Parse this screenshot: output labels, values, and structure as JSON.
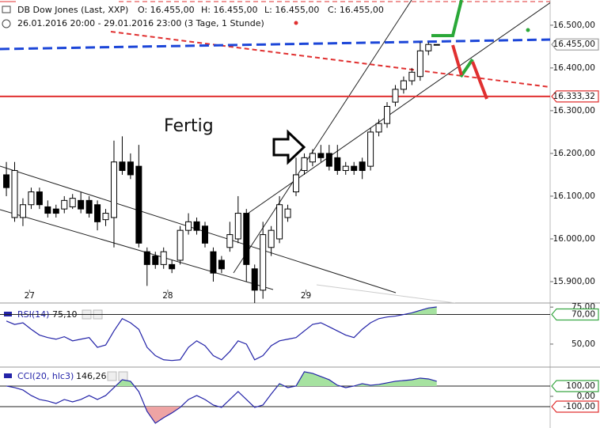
{
  "header": {
    "title": "DB Dow Jones (Last, XXP)",
    "open": "O: 16.455,00",
    "high": "H: 16.455,00",
    "low": "L: 16.455,00",
    "close": "C: 16.455,00",
    "range": "26.01.2016 20:00 - 29.01.2016 23:00 (3 Tage, 1 Stunde)"
  },
  "annotations": [
    "Fertig"
  ],
  "chart_data": [
    {
      "type": "candlestick",
      "categories": [
        null,
        null,
        null,
        null,
        null,
        null,
        null,
        null,
        null,
        null,
        null,
        null,
        null,
        null,
        null,
        null,
        null,
        null,
        null,
        null,
        null,
        null,
        null,
        null,
        null,
        null,
        null,
        null,
        null,
        null,
        null,
        null,
        null,
        null,
        null,
        null,
        null,
        null,
        null,
        null,
        null,
        null,
        null,
        null,
        null,
        null,
        null,
        null,
        null,
        null,
        null,
        null,
        null
      ],
      "open": [
        16150,
        16050,
        16050,
        16080,
        16110,
        16075,
        16070,
        16070,
        16075,
        16090,
        16090,
        16080,
        16045,
        16050,
        16180,
        16180,
        16170,
        15970,
        15960,
        15940,
        15940,
        15950,
        16020,
        16040,
        16030,
        15970,
        15950,
        15980,
        16000,
        16060,
        15930,
        15880,
        15980,
        16000,
        16050,
        16110,
        16160,
        16180,
        16200,
        16200,
        16190,
        16160,
        16170,
        16180,
        16170,
        16250,
        16270,
        16320,
        16350,
        16370,
        16380,
        16440,
        16455
      ],
      "high": [
        16180,
        16180,
        16095,
        16120,
        16120,
        16090,
        16080,
        16100,
        16105,
        16110,
        16100,
        16090,
        16070,
        16230,
        16240,
        16200,
        16220,
        15980,
        15970,
        15980,
        15950,
        16030,
        16060,
        16050,
        16040,
        15980,
        15960,
        16040,
        16100,
        16070,
        15940,
        16040,
        16030,
        16100,
        16080,
        16190,
        16200,
        16210,
        16220,
        16220,
        16220,
        16180,
        16180,
        16190,
        16260,
        16280,
        16320,
        16360,
        16380,
        16400,
        16460,
        16460,
        16455
      ],
      "low": [
        16100,
        16040,
        16030,
        16070,
        16070,
        16050,
        16050,
        16060,
        16070,
        16060,
        16050,
        16020,
        16030,
        15980,
        16150,
        16140,
        15980,
        15890,
        15930,
        15930,
        15920,
        15940,
        16010,
        16010,
        15980,
        15900,
        15920,
        15970,
        15990,
        15900,
        15850,
        15860,
        15960,
        15990,
        16040,
        16100,
        16150,
        16170,
        16180,
        16160,
        16150,
        16150,
        16150,
        16140,
        16160,
        16240,
        16260,
        16310,
        16340,
        16360,
        16370,
        16430,
        16455
      ],
      "close": [
        16120,
        16160,
        16080,
        16110,
        16080,
        16060,
        16060,
        16090,
        16095,
        16070,
        16060,
        16040,
        16060,
        16180,
        16160,
        16150,
        15990,
        15940,
        15940,
        15970,
        15930,
        16020,
        16040,
        16020,
        15990,
        15920,
        15930,
        16010,
        16060,
        15940,
        15880,
        16010,
        16020,
        16080,
        16070,
        16150,
        16190,
        16200,
        16190,
        16170,
        16160,
        16170,
        16160,
        16160,
        16250,
        16270,
        16310,
        16350,
        16370,
        16390,
        16440,
        16455,
        16455
      ],
      "xlim": [
        -0.77,
        65.7
      ],
      "xticks": [
        {
          "value": 2.8,
          "label": "27"
        },
        {
          "value": 19.5,
          "label": "28"
        },
        {
          "value": 36.2,
          "label": "29"
        }
      ],
      "ylim": [
        15850,
        16559
      ],
      "yticks": [
        {
          "value": 16500,
          "label": "16.500,00"
        },
        {
          "value": 16400,
          "label": "16.400,00"
        },
        {
          "value": 16300,
          "label": "16.300,00"
        },
        {
          "value": 16200,
          "label": "16.200,00"
        },
        {
          "value": 16100,
          "label": "16.100,00"
        },
        {
          "value": 16000,
          "label": "16.000,00"
        },
        {
          "value": 15900,
          "label": "15.900,00"
        }
      ],
      "levels": [
        {
          "value": 16455,
          "label": "16.455,00",
          "color": "#9a9a9a",
          "line": false
        },
        {
          "value": 16333.32,
          "label": "16.333,32",
          "color": "#e03030",
          "line": true
        }
      ]
    },
    {
      "type": "line",
      "series": [
        {
          "name": "RSI(14)",
          "color": "#2323a8",
          "values": [
            65.6,
            63.3,
            64.4,
            60,
            56.1,
            54.4,
            53.3,
            55,
            52.2,
            53.3,
            54.4,
            47.8,
            49.4,
            58.9,
            67.2,
            64.4,
            60,
            47.8,
            42.2,
            39.4,
            38.9,
            39.4,
            47.8,
            52.2,
            48.9,
            42.2,
            39.4,
            45,
            52.2,
            50,
            39.4,
            42.2,
            48.9,
            52.2,
            53.3,
            54.4,
            58.9,
            63.3,
            64.4,
            61.7,
            58.9,
            56.1,
            54.4,
            60,
            64.4,
            67.2,
            68.3,
            68.9,
            70,
            71.1,
            72.8,
            74.4,
            75.1
          ],
          "current": {
            "value": 75.1,
            "label": "75,10"
          }
        }
      ],
      "ylim": [
        35,
        76.7
      ],
      "yticks": [
        {
          "value": 75,
          "label": "75,00"
        },
        {
          "value": 50,
          "label": "50,00"
        }
      ],
      "levels": [
        {
          "value": 70,
          "label": "70,00",
          "color": "#3aa845",
          "fill": "#a6e2a0",
          "side": "above"
        }
      ]
    },
    {
      "type": "line",
      "series": [
        {
          "name": "CCI(20, hlc3)",
          "color": "#2323a8",
          "values": [
            100,
            84.6,
            61.5,
            7.7,
            -30.8,
            -46.2,
            -69.2,
            -30.8,
            -53.8,
            -30.8,
            7.7,
            -30.8,
            7.7,
            84.6,
            161.5,
            146.2,
            46.2,
            -146.2,
            -261.5,
            -207.7,
            -161.5,
            -107.7,
            -30.8,
            7.7,
            -30.8,
            -84.6,
            -107.7,
            -30.8,
            46.2,
            -30.8,
            -107.7,
            -84.6,
            23.1,
            123.1,
            84.6,
            100,
            238.5,
            223.1,
            192.3,
            161.5,
            107.7,
            84.6,
            100,
            123.1,
            107.7,
            115.4,
            130.8,
            146.2,
            153.8,
            161.5,
            176.9,
            169.2,
            146.26
          ],
          "current": {
            "value": 146.26,
            "label": "146,26"
          }
        }
      ],
      "ylim": [
        -308,
        269
      ],
      "yticks": [
        {
          "value": 0,
          "label": "0,00"
        }
      ],
      "levels": [
        {
          "value": 100,
          "label": "100,00",
          "color": "#3aa845",
          "fill": "#a6e2a0",
          "side": "above"
        },
        {
          "value": -100,
          "label": "-100,00",
          "color": "#e03030",
          "fill": "#eea4a4",
          "side": "below"
        }
      ]
    }
  ]
}
